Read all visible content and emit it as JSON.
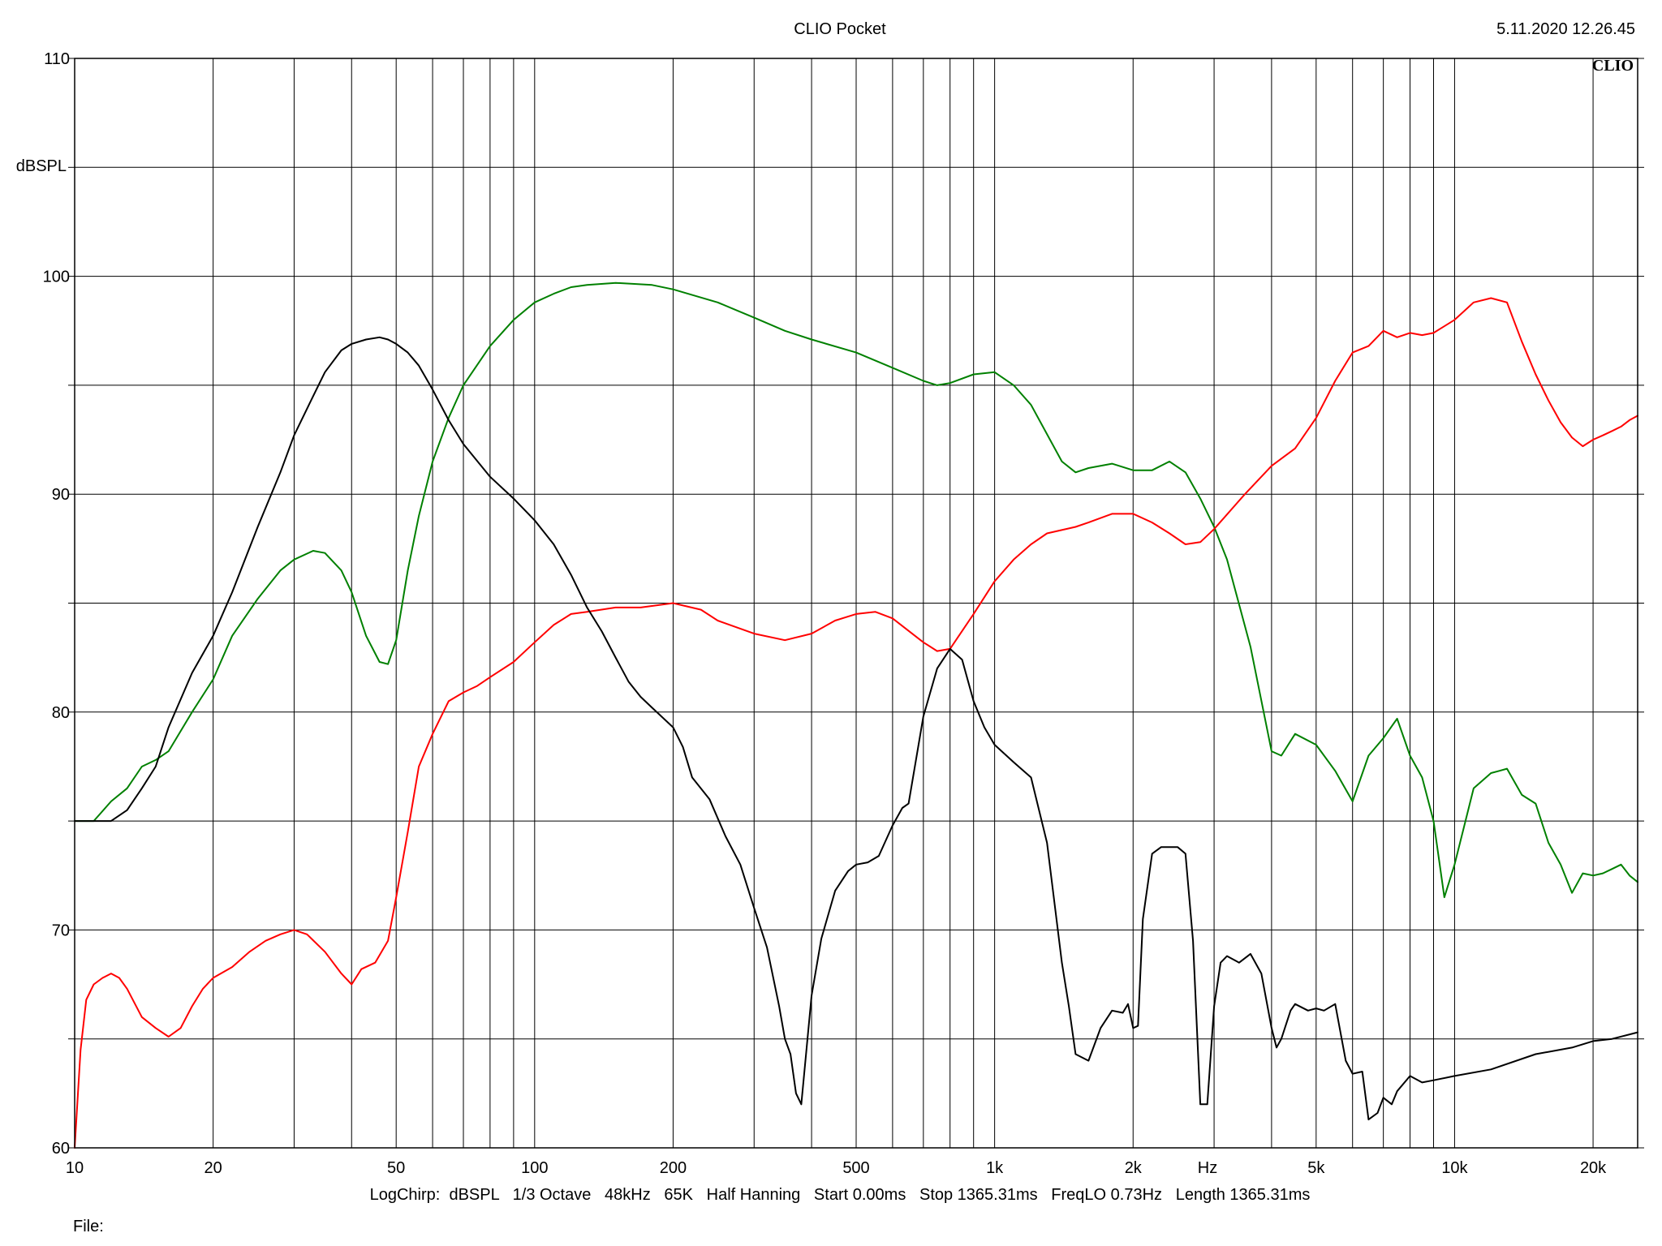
{
  "header": {
    "title": "CLIO Pocket",
    "timestamp": "5.11.2020 12.26.45",
    "brand": "CLIO"
  },
  "footer": {
    "params": "LogChirp:  dBSPL   1/3 Octave   48kHz   65K   Half Hanning   Start 0.00ms   Stop 1365.31ms   FreqLO 0.73Hz   Length 1365.31ms",
    "file_label": "File:"
  },
  "chart_data": {
    "type": "line",
    "title": "",
    "xlabel": "Hz",
    "ylabel": "dBSPL",
    "xscale": "log",
    "xlim": [
      10,
      25000
    ],
    "ylim": [
      60,
      110
    ],
    "grid": true,
    "legend": "none",
    "x_ticks": [
      {
        "value": 10,
        "label": "10"
      },
      {
        "value": 20,
        "label": "20"
      },
      {
        "value": 50,
        "label": "50"
      },
      {
        "value": 100,
        "label": "100"
      },
      {
        "value": 200,
        "label": "200"
      },
      {
        "value": 500,
        "label": "500"
      },
      {
        "value": 1000,
        "label": "1k"
      },
      {
        "value": 2000,
        "label": "2k"
      },
      {
        "value": 5000,
        "label": "5k"
      },
      {
        "value": 10000,
        "label": "10k"
      },
      {
        "value": 20000,
        "label": "20k"
      }
    ],
    "y_ticks": [
      {
        "value": 60,
        "label": "60"
      },
      {
        "value": 70,
        "label": "70"
      },
      {
        "value": 80,
        "label": "80"
      },
      {
        "value": 90,
        "label": "90"
      },
      {
        "value": 100,
        "label": "100"
      },
      {
        "value": 110,
        "label": "110"
      }
    ],
    "series": [
      {
        "color": "#008000",
        "x": [
          10,
          11,
          12,
          13,
          14,
          15,
          16,
          18,
          20,
          22,
          25,
          28,
          30,
          33,
          35,
          38,
          40,
          43,
          46,
          48,
          50,
          53,
          56,
          60,
          65,
          70,
          80,
          90,
          100,
          110,
          120,
          130,
          150,
          180,
          200,
          250,
          300,
          350,
          400,
          500,
          600,
          700,
          750,
          800,
          900,
          1000,
          1100,
          1200,
          1400,
          1500,
          1600,
          1800,
          2000,
          2200,
          2400,
          2600,
          2800,
          3000,
          3200,
          3600,
          4000,
          4200,
          4500,
          5000,
          5500,
          6000,
          6500,
          7000,
          7500,
          8000,
          8500,
          9000,
          9500,
          10000,
          11000,
          12000,
          12500,
          13000,
          14000,
          15000,
          16000,
          17000,
          18000,
          19000,
          20000,
          21000,
          22000,
          23000,
          24000,
          25000
        ],
        "y": [
          75,
          75,
          75.9,
          76.5,
          77.5,
          77.8,
          78.2,
          80,
          81.5,
          83.5,
          85.2,
          86.5,
          87,
          87.4,
          87.3,
          86.5,
          85.5,
          83.5,
          82.3,
          82.2,
          83.3,
          86.5,
          89,
          91.5,
          93.5,
          95,
          96.8,
          98,
          98.8,
          99.2,
          99.5,
          99.6,
          99.7,
          99.6,
          99.4,
          98.8,
          98.1,
          97.5,
          97.1,
          96.5,
          95.8,
          95.2,
          95.0,
          95.1,
          95.5,
          95.6,
          95.0,
          94.1,
          91.5,
          91.0,
          91.2,
          91.4,
          91.1,
          91.1,
          91.5,
          91.0,
          89.8,
          88.5,
          87.0,
          83.0,
          78.2,
          78.0,
          79.0,
          78.5,
          77.3,
          75.9,
          78.0,
          78.8,
          79.7,
          78.0,
          77.0,
          75.0,
          71.5,
          73.0,
          76.5,
          77.2,
          77.3,
          77.4,
          76.2,
          75.8,
          74.0,
          73.0,
          71.7,
          72.6,
          72.5,
          72.6,
          72.8,
          73.0,
          72.5,
          72.2
        ]
      },
      {
        "color": "#ff0000",
        "x": [
          10,
          10.3,
          10.6,
          11,
          11.5,
          12,
          12.5,
          13,
          14,
          15,
          16,
          17,
          18,
          19,
          20,
          22,
          24,
          26,
          28,
          30,
          32,
          35,
          38,
          40,
          42,
          45,
          48,
          50,
          53,
          56,
          60,
          65,
          70,
          75,
          80,
          90,
          100,
          110,
          120,
          130,
          150,
          170,
          200,
          230,
          250,
          300,
          350,
          400,
          450,
          500,
          550,
          600,
          700,
          750,
          800,
          900,
          1000,
          1100,
          1200,
          1300,
          1500,
          1600,
          1800,
          2000,
          2200,
          2400,
          2600,
          2800,
          3000,
          3500,
          4000,
          4500,
          5000,
          5500,
          6000,
          6500,
          7000,
          7500,
          8000,
          8500,
          9000,
          10000,
          11000,
          12000,
          13000,
          14000,
          15000,
          16000,
          17000,
          18000,
          19000,
          20000,
          21000,
          22000,
          23000,
          24000,
          25000
        ],
        "y": [
          60,
          64.5,
          66.8,
          67.5,
          67.8,
          68.0,
          67.8,
          67.3,
          66.0,
          65.5,
          65.1,
          65.5,
          66.5,
          67.3,
          67.8,
          68.3,
          69.0,
          69.5,
          69.8,
          70.0,
          69.8,
          69.0,
          68.0,
          67.5,
          68.2,
          68.5,
          69.5,
          71.5,
          74.5,
          77.5,
          79.0,
          80.5,
          80.9,
          81.2,
          81.6,
          82.3,
          83.2,
          84.0,
          84.5,
          84.6,
          84.8,
          84.8,
          85.0,
          84.7,
          84.2,
          83.6,
          83.3,
          83.6,
          84.2,
          84.5,
          84.6,
          84.3,
          83.2,
          82.8,
          82.9,
          84.5,
          86.0,
          87.0,
          87.7,
          88.2,
          88.5,
          88.7,
          89.1,
          89.1,
          88.7,
          88.2,
          87.7,
          87.8,
          88.4,
          90.0,
          91.3,
          92.1,
          93.5,
          95.2,
          96.5,
          96.8,
          97.5,
          97.2,
          97.4,
          97.3,
          97.4,
          98.0,
          98.8,
          99.0,
          98.8,
          97.0,
          95.5,
          94.3,
          93.3,
          92.6,
          92.2,
          92.5,
          92.7,
          92.9,
          93.1,
          93.4,
          93.6
        ]
      },
      {
        "color": "#000000",
        "x": [
          10,
          11,
          12,
          13,
          14,
          15,
          16,
          18,
          20,
          22,
          25,
          28,
          30,
          33,
          35,
          38,
          40,
          43,
          46,
          48,
          50,
          53,
          56,
          60,
          65,
          70,
          80,
          90,
          100,
          110,
          120,
          130,
          140,
          150,
          160,
          170,
          180,
          200,
          210,
          220,
          240,
          260,
          280,
          300,
          320,
          340,
          350,
          360,
          370,
          380,
          400,
          420,
          450,
          480,
          500,
          530,
          560,
          600,
          630,
          650,
          700,
          750,
          800,
          850,
          900,
          950,
          1000,
          1100,
          1200,
          1300,
          1400,
          1450,
          1500,
          1600,
          1700,
          1800,
          1900,
          1950,
          2000,
          2050,
          2100,
          2200,
          2300,
          2400,
          2500,
          2600,
          2700,
          2800,
          2900,
          3000,
          3100,
          3200,
          3400,
          3600,
          3800,
          4000,
          4100,
          4200,
          4400,
          4500,
          4800,
          5000,
          5200,
          5500,
          5800,
          6000,
          6300,
          6500,
          6800,
          7000,
          7300,
          7500,
          8000,
          8500,
          9000,
          10000,
          12000,
          15000,
          18000,
          20000,
          22000,
          25000
        ],
        "y": [
          75,
          75,
          75,
          75.5,
          76.5,
          77.5,
          79.3,
          81.8,
          83.5,
          85.5,
          88.5,
          91,
          92.7,
          94.5,
          95.6,
          96.6,
          96.9,
          97.1,
          97.2,
          97.1,
          96.9,
          96.5,
          95.9,
          94.8,
          93.4,
          92.3,
          90.8,
          89.8,
          88.8,
          87.7,
          86.3,
          84.8,
          83.7,
          82.5,
          81.4,
          80.7,
          80.2,
          79.3,
          78.4,
          77.0,
          76.0,
          74.3,
          73.0,
          71.0,
          69.2,
          66.5,
          65.0,
          64.3,
          62.5,
          62.0,
          67.0,
          69.6,
          71.8,
          72.7,
          73.0,
          73.1,
          73.4,
          74.8,
          75.6,
          75.8,
          79.8,
          82.0,
          82.9,
          82.4,
          80.5,
          79.3,
          78.5,
          77.7,
          77.0,
          74.0,
          68.5,
          66.5,
          64.3,
          64.0,
          65.5,
          66.3,
          66.2,
          66.6,
          65.5,
          65.6,
          70.5,
          73.5,
          73.8,
          73.8,
          73.8,
          73.5,
          69.5,
          62.0,
          62.0,
          66.5,
          68.5,
          68.8,
          68.5,
          68.9,
          68.0,
          65.5,
          64.6,
          65.0,
          66.3,
          66.6,
          66.3,
          66.4,
          66.3,
          66.6,
          64.0,
          63.4,
          63.5,
          61.3,
          61.6,
          62.3,
          62.0,
          62.6,
          63.3,
          63.0,
          63.1,
          63.3,
          63.6,
          64.3,
          64.6,
          64.9,
          65.0,
          65.3
        ]
      }
    ]
  }
}
